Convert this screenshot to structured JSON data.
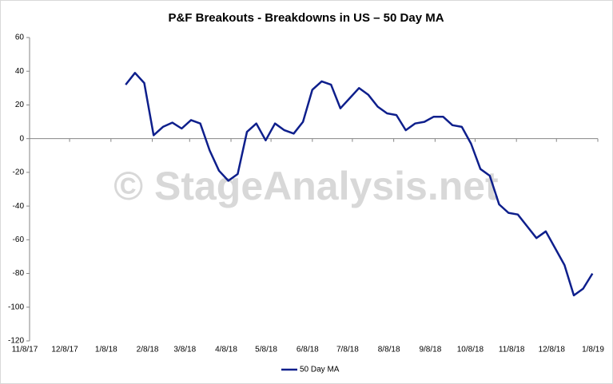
{
  "chart_data": {
    "type": "line",
    "title": "P&F Breakouts - Breakdowns in US – 50 Day MA",
    "watermark": "© StageAnalysis.net",
    "x": [
      "2018-01-19",
      "2018-01-26",
      "2018-02-02",
      "2018-02-09",
      "2018-02-16",
      "2018-02-23",
      "2018-03-02",
      "2018-03-09",
      "2018-03-16",
      "2018-03-23",
      "2018-03-30",
      "2018-04-06",
      "2018-04-13",
      "2018-04-20",
      "2018-04-27",
      "2018-05-04",
      "2018-05-11",
      "2018-05-18",
      "2018-05-25",
      "2018-06-01",
      "2018-06-08",
      "2018-06-15",
      "2018-06-22",
      "2018-06-29",
      "2018-07-06",
      "2018-07-13",
      "2018-07-20",
      "2018-07-27",
      "2018-08-03",
      "2018-08-10",
      "2018-08-17",
      "2018-08-24",
      "2018-08-31",
      "2018-09-07",
      "2018-09-14",
      "2018-09-21",
      "2018-09-28",
      "2018-10-05",
      "2018-10-12",
      "2018-10-19",
      "2018-10-26",
      "2018-11-02",
      "2018-11-09",
      "2018-11-16",
      "2018-11-23",
      "2018-11-30",
      "2018-12-07",
      "2018-12-14",
      "2018-12-21",
      "2018-12-28",
      "2019-01-04"
    ],
    "series": [
      {
        "name": "50 Day MA",
        "color": "#0e1f8c",
        "values": [
          32,
          39,
          33,
          2,
          7,
          9.5,
          6,
          11,
          9,
          -7,
          -19,
          -25,
          -21,
          4,
          9,
          -1,
          9,
          5,
          3,
          10,
          29,
          34,
          32,
          18,
          24,
          30,
          26,
          19,
          15,
          14,
          5,
          9,
          10,
          13,
          13,
          8,
          7,
          -3,
          -18,
          -22,
          -39,
          -44,
          -45,
          -52,
          -59,
          -55,
          -65,
          -75,
          -93,
          -89,
          -80
        ]
      }
    ],
    "xlim": [
      "2017-11-08",
      "2019-01-08"
    ],
    "xticks": [
      {
        "value": "2017-11-08",
        "label": "11/8/17"
      },
      {
        "value": "2017-12-08",
        "label": "12/8/17"
      },
      {
        "value": "2018-01-08",
        "label": "1/8/18"
      },
      {
        "value": "2018-02-08",
        "label": "2/8/18"
      },
      {
        "value": "2018-03-08",
        "label": "3/8/18"
      },
      {
        "value": "2018-04-08",
        "label": "4/8/18"
      },
      {
        "value": "2018-05-08",
        "label": "5/8/18"
      },
      {
        "value": "2018-06-08",
        "label": "6/8/18"
      },
      {
        "value": "2018-07-08",
        "label": "7/8/18"
      },
      {
        "value": "2018-08-08",
        "label": "8/8/18"
      },
      {
        "value": "2018-09-08",
        "label": "9/8/18"
      },
      {
        "value": "2018-10-08",
        "label": "10/8/18"
      },
      {
        "value": "2018-11-08",
        "label": "11/8/18"
      },
      {
        "value": "2018-12-08",
        "label": "12/8/18"
      },
      {
        "value": "2019-01-08",
        "label": "1/8/19"
      }
    ],
    "ylim": [
      -120,
      60
    ],
    "yticks": [
      -120,
      -100,
      -80,
      -60,
      -40,
      -20,
      0,
      20,
      40,
      60
    ],
    "grid": false,
    "legend": "bottom"
  }
}
